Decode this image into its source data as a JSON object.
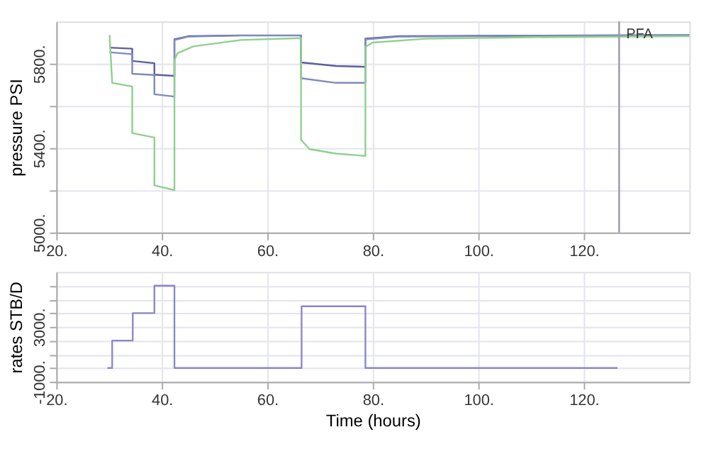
{
  "chart_data": [
    {
      "type": "line",
      "ylabel": "pressure PSI",
      "xlim": [
        20,
        140
      ],
      "xticks": [
        {
          "value": 20,
          "label": "20."
        },
        {
          "value": 40,
          "label": "40."
        },
        {
          "value": 60,
          "label": "60."
        },
        {
          "value": 80,
          "label": "80."
        },
        {
          "value": 100,
          "label": "100."
        },
        {
          "value": 120,
          "label": "120."
        }
      ],
      "ylim": [
        5000,
        6000
      ],
      "yticks": [
        {
          "value": 5000,
          "label": "5000."
        },
        {
          "value": 5200,
          "label": null
        },
        {
          "value": 5400,
          "label": "5400."
        },
        {
          "value": 5600,
          "label": null
        },
        {
          "value": 5800,
          "label": "5800."
        }
      ],
      "grid": true,
      "series": [
        {
          "color": "#5c5ea0",
          "x": [
            30.1,
            34.4,
            34.4,
            38.6,
            38.6,
            42.4,
            42.4,
            45,
            55,
            66.4,
            66.4,
            73,
            78.6,
            78.6,
            85,
            100,
            120,
            140
          ],
          "values": [
            5876,
            5871,
            5813,
            5802,
            5748,
            5742,
            5915,
            5930,
            5934,
            5934,
            5806,
            5789,
            5785,
            5919,
            5930,
            5932,
            5934,
            5935
          ]
        },
        {
          "color": "#7f8cb8",
          "x": [
            30.1,
            34.4,
            34.4,
            38.6,
            38.6,
            42.4,
            42.4,
            45,
            55,
            66.4,
            66.4,
            73,
            78.6,
            78.6,
            85,
            100,
            120,
            140
          ],
          "values": [
            5854,
            5845,
            5752,
            5746,
            5655,
            5644,
            5912,
            5928,
            5933,
            5933,
            5731,
            5709,
            5709,
            5915,
            5928,
            5930,
            5933,
            5934
          ]
        },
        {
          "color": "#8fd08f",
          "x": [
            30.1,
            30.6,
            34.4,
            34.4,
            38.6,
            38.6,
            42.4,
            42.4,
            43,
            46,
            55,
            66.4,
            66.4,
            68,
            73,
            78.6,
            78.6,
            80,
            90,
            110,
            140
          ],
          "values": [
            5936,
            5709,
            5692,
            5471,
            5450,
            5223,
            5201,
            5817,
            5850,
            5882,
            5912,
            5921,
            5439,
            5395,
            5374,
            5363,
            5880,
            5900,
            5918,
            5925,
            5930
          ]
        }
      ],
      "ref_lines": [
        {
          "axis": "x",
          "value": 126.7,
          "label": "PFA",
          "color": "#9a9aa8"
        }
      ]
    },
    {
      "type": "line",
      "xlabel": "Time (hours)",
      "ylabel": "rates STB/D",
      "xlim": [
        20,
        140
      ],
      "xticks": [
        {
          "value": 20,
          "label": "20."
        },
        {
          "value": 40,
          "label": "40."
        },
        {
          "value": 60,
          "label": "60."
        },
        {
          "value": 80,
          "label": "80."
        },
        {
          "value": 100,
          "label": "100."
        },
        {
          "value": 120,
          "label": "120."
        }
      ],
      "ylim": [
        -1000,
        7000
      ],
      "yticks": [
        {
          "value": -1000,
          "label": "-1000."
        },
        {
          "value": 0,
          "label": null
        },
        {
          "value": 1000,
          "label": null
        },
        {
          "value": 2000,
          "label": null
        },
        {
          "value": 3000,
          "label": "3000."
        },
        {
          "value": 4000,
          "label": null
        },
        {
          "value": 5000,
          "label": null
        },
        {
          "value": 6000,
          "label": null
        }
      ],
      "grid": true,
      "series": [
        {
          "color": "#8a88c8",
          "x": [
            29.7,
            30.6,
            30.6,
            34.5,
            34.5,
            38.6,
            38.6,
            42.4,
            42.4,
            66.5,
            66.5,
            78.6,
            78.6,
            126.4
          ],
          "values": [
            0,
            0,
            2000,
            2000,
            4000,
            4000,
            6000,
            6000,
            0,
            0,
            4500,
            4500,
            0,
            0
          ]
        }
      ]
    }
  ]
}
